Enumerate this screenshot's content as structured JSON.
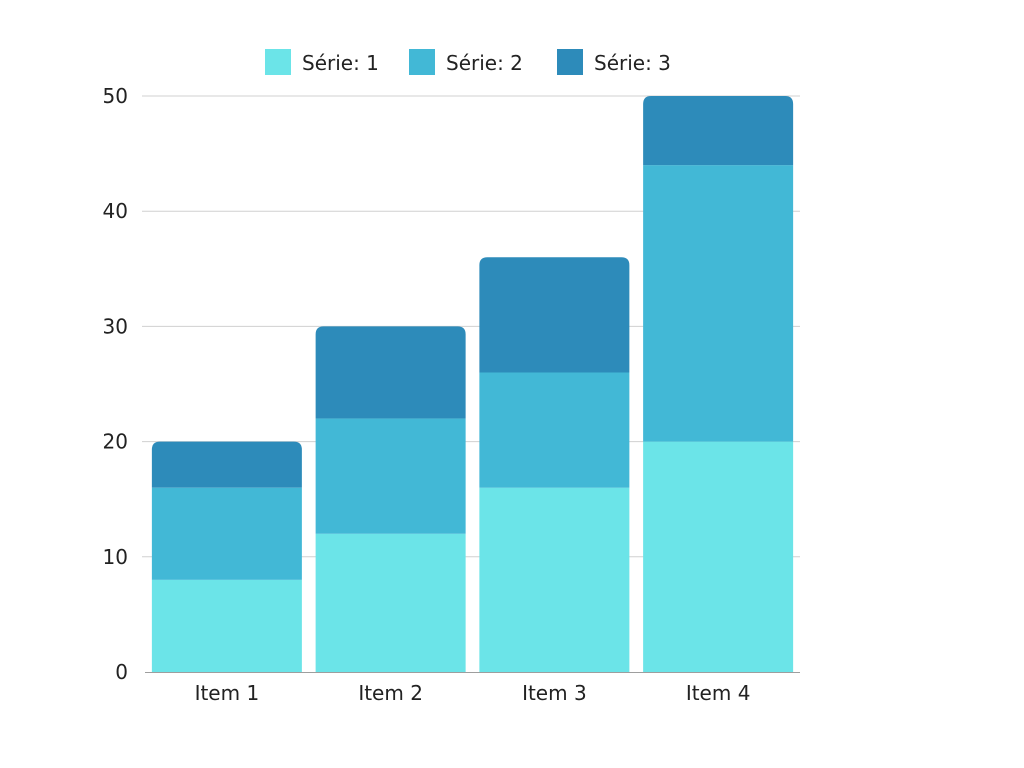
{
  "chart_data": {
    "type": "bar",
    "stacked": true,
    "title": "",
    "xlabel": "",
    "ylabel": "",
    "categories": [
      "Item 1",
      "Item 2",
      "Item 3",
      "Item 4"
    ],
    "series": [
      {
        "name": "Série: 1",
        "color": "#6BE4E8",
        "values": [
          8,
          12,
          16,
          20
        ]
      },
      {
        "name": "Série: 2",
        "color": "#42B8D6",
        "values": [
          8,
          10,
          10,
          24
        ]
      },
      {
        "name": "Série: 3",
        "color": "#2D8BBA",
        "values": [
          4,
          8,
          10,
          6
        ]
      }
    ],
    "ylim": [
      0,
      50
    ],
    "yticks": [
      0,
      10,
      20,
      30,
      40,
      50
    ],
    "grid": true,
    "legend_position": "top"
  }
}
